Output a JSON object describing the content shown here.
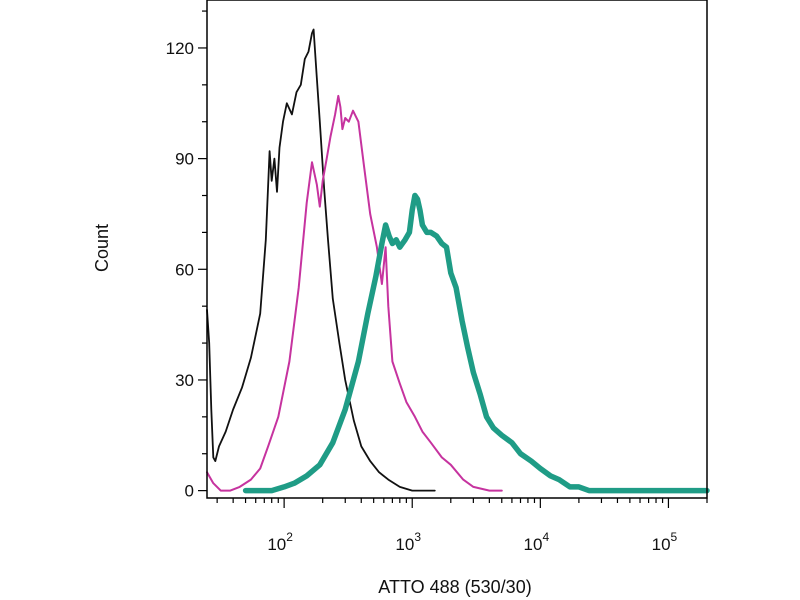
{
  "chart_data": {
    "type": "line",
    "title": "",
    "xlabel": "ATTO 488 (530/30)",
    "ylabel": "Count",
    "x_scale": "log",
    "xlim": [
      25,
      200000
    ],
    "ylim": [
      -2,
      133
    ],
    "x_ticks": [
      {
        "value": 100,
        "base": "10",
        "exp": "2"
      },
      {
        "value": 1000,
        "base": "10",
        "exp": "3"
      },
      {
        "value": 10000,
        "base": "10",
        "exp": "4"
      },
      {
        "value": 100000,
        "base": "10",
        "exp": "5"
      }
    ],
    "y_ticks": [
      {
        "value": 0,
        "label": "0"
      },
      {
        "value": 30,
        "label": "30"
      },
      {
        "value": 60,
        "label": "60"
      },
      {
        "value": 90,
        "label": "90"
      },
      {
        "value": 120,
        "label": "120"
      }
    ],
    "grid": false,
    "legend": "none",
    "series": [
      {
        "color": "#111111",
        "stroke": "thin",
        "x": [
          25,
          26,
          27,
          28,
          29,
          31,
          35,
          40,
          47,
          55,
          65,
          72,
          77,
          80,
          84,
          88,
          92,
          98,
          105,
          115,
          125,
          135,
          145,
          155,
          165,
          170,
          180,
          190,
          205,
          220,
          240,
          270,
          300,
          350,
          400,
          470,
          550,
          650,
          800,
          1000,
          1500
        ],
        "y": [
          49,
          40,
          22,
          9,
          8,
          12,
          16,
          22,
          28,
          36,
          48,
          68,
          92,
          84,
          90,
          81,
          93,
          100,
          105,
          102,
          108,
          110,
          117,
          119,
          124,
          125,
          112,
          100,
          82,
          68,
          52,
          40,
          30,
          19,
          12,
          8,
          5,
          3,
          1,
          0,
          0
        ]
      },
      {
        "color": "#c6339f",
        "stroke": "medium",
        "x": [
          25,
          28,
          32,
          38,
          45,
          55,
          65,
          75,
          90,
          110,
          130,
          150,
          165,
          180,
          190,
          200,
          215,
          230,
          250,
          265,
          275,
          285,
          300,
          320,
          345,
          380,
          420,
          470,
          530,
          580,
          620,
          650,
          700,
          800,
          900,
          1050,
          1200,
          1400,
          1700,
          2000,
          2500,
          3000,
          4000,
          5000
        ],
        "y": [
          5,
          2,
          0,
          0,
          1,
          3,
          6,
          12,
          20,
          35,
          55,
          78,
          89,
          83,
          77,
          84,
          90,
          96,
          102,
          107,
          104,
          98,
          101,
          100,
          103,
          100,
          88,
          75,
          66,
          56,
          66,
          50,
          35,
          29,
          24,
          20,
          16,
          13,
          9,
          7,
          3,
          1,
          0,
          0
        ]
      },
      {
        "color": "#1f9c86",
        "stroke": "thick",
        "x": [
          50,
          80,
          100,
          120,
          150,
          190,
          240,
          300,
          380,
          450,
          520,
          580,
          620,
          660,
          700,
          750,
          800,
          880,
          950,
          1000,
          1050,
          1100,
          1150,
          1200,
          1300,
          1400,
          1550,
          1700,
          1850,
          2000,
          2200,
          2450,
          2700,
          3000,
          3400,
          3800,
          4300,
          5000,
          6000,
          7000,
          8500,
          10000,
          12000,
          14000,
          17000,
          20000,
          24000,
          30000,
          40000,
          60000,
          100000,
          200000
        ],
        "y": [
          0,
          0,
          1,
          2,
          4,
          7,
          13,
          22,
          35,
          48,
          58,
          67,
          72,
          69,
          67,
          68,
          66,
          68,
          70,
          76,
          80,
          79,
          76,
          72,
          70,
          70,
          69,
          67,
          66,
          59,
          55,
          46,
          39,
          32,
          26,
          20,
          17,
          15,
          13,
          10,
          8,
          6,
          4,
          3,
          1,
          1,
          0,
          0,
          0,
          0,
          0,
          0
        ]
      }
    ]
  }
}
